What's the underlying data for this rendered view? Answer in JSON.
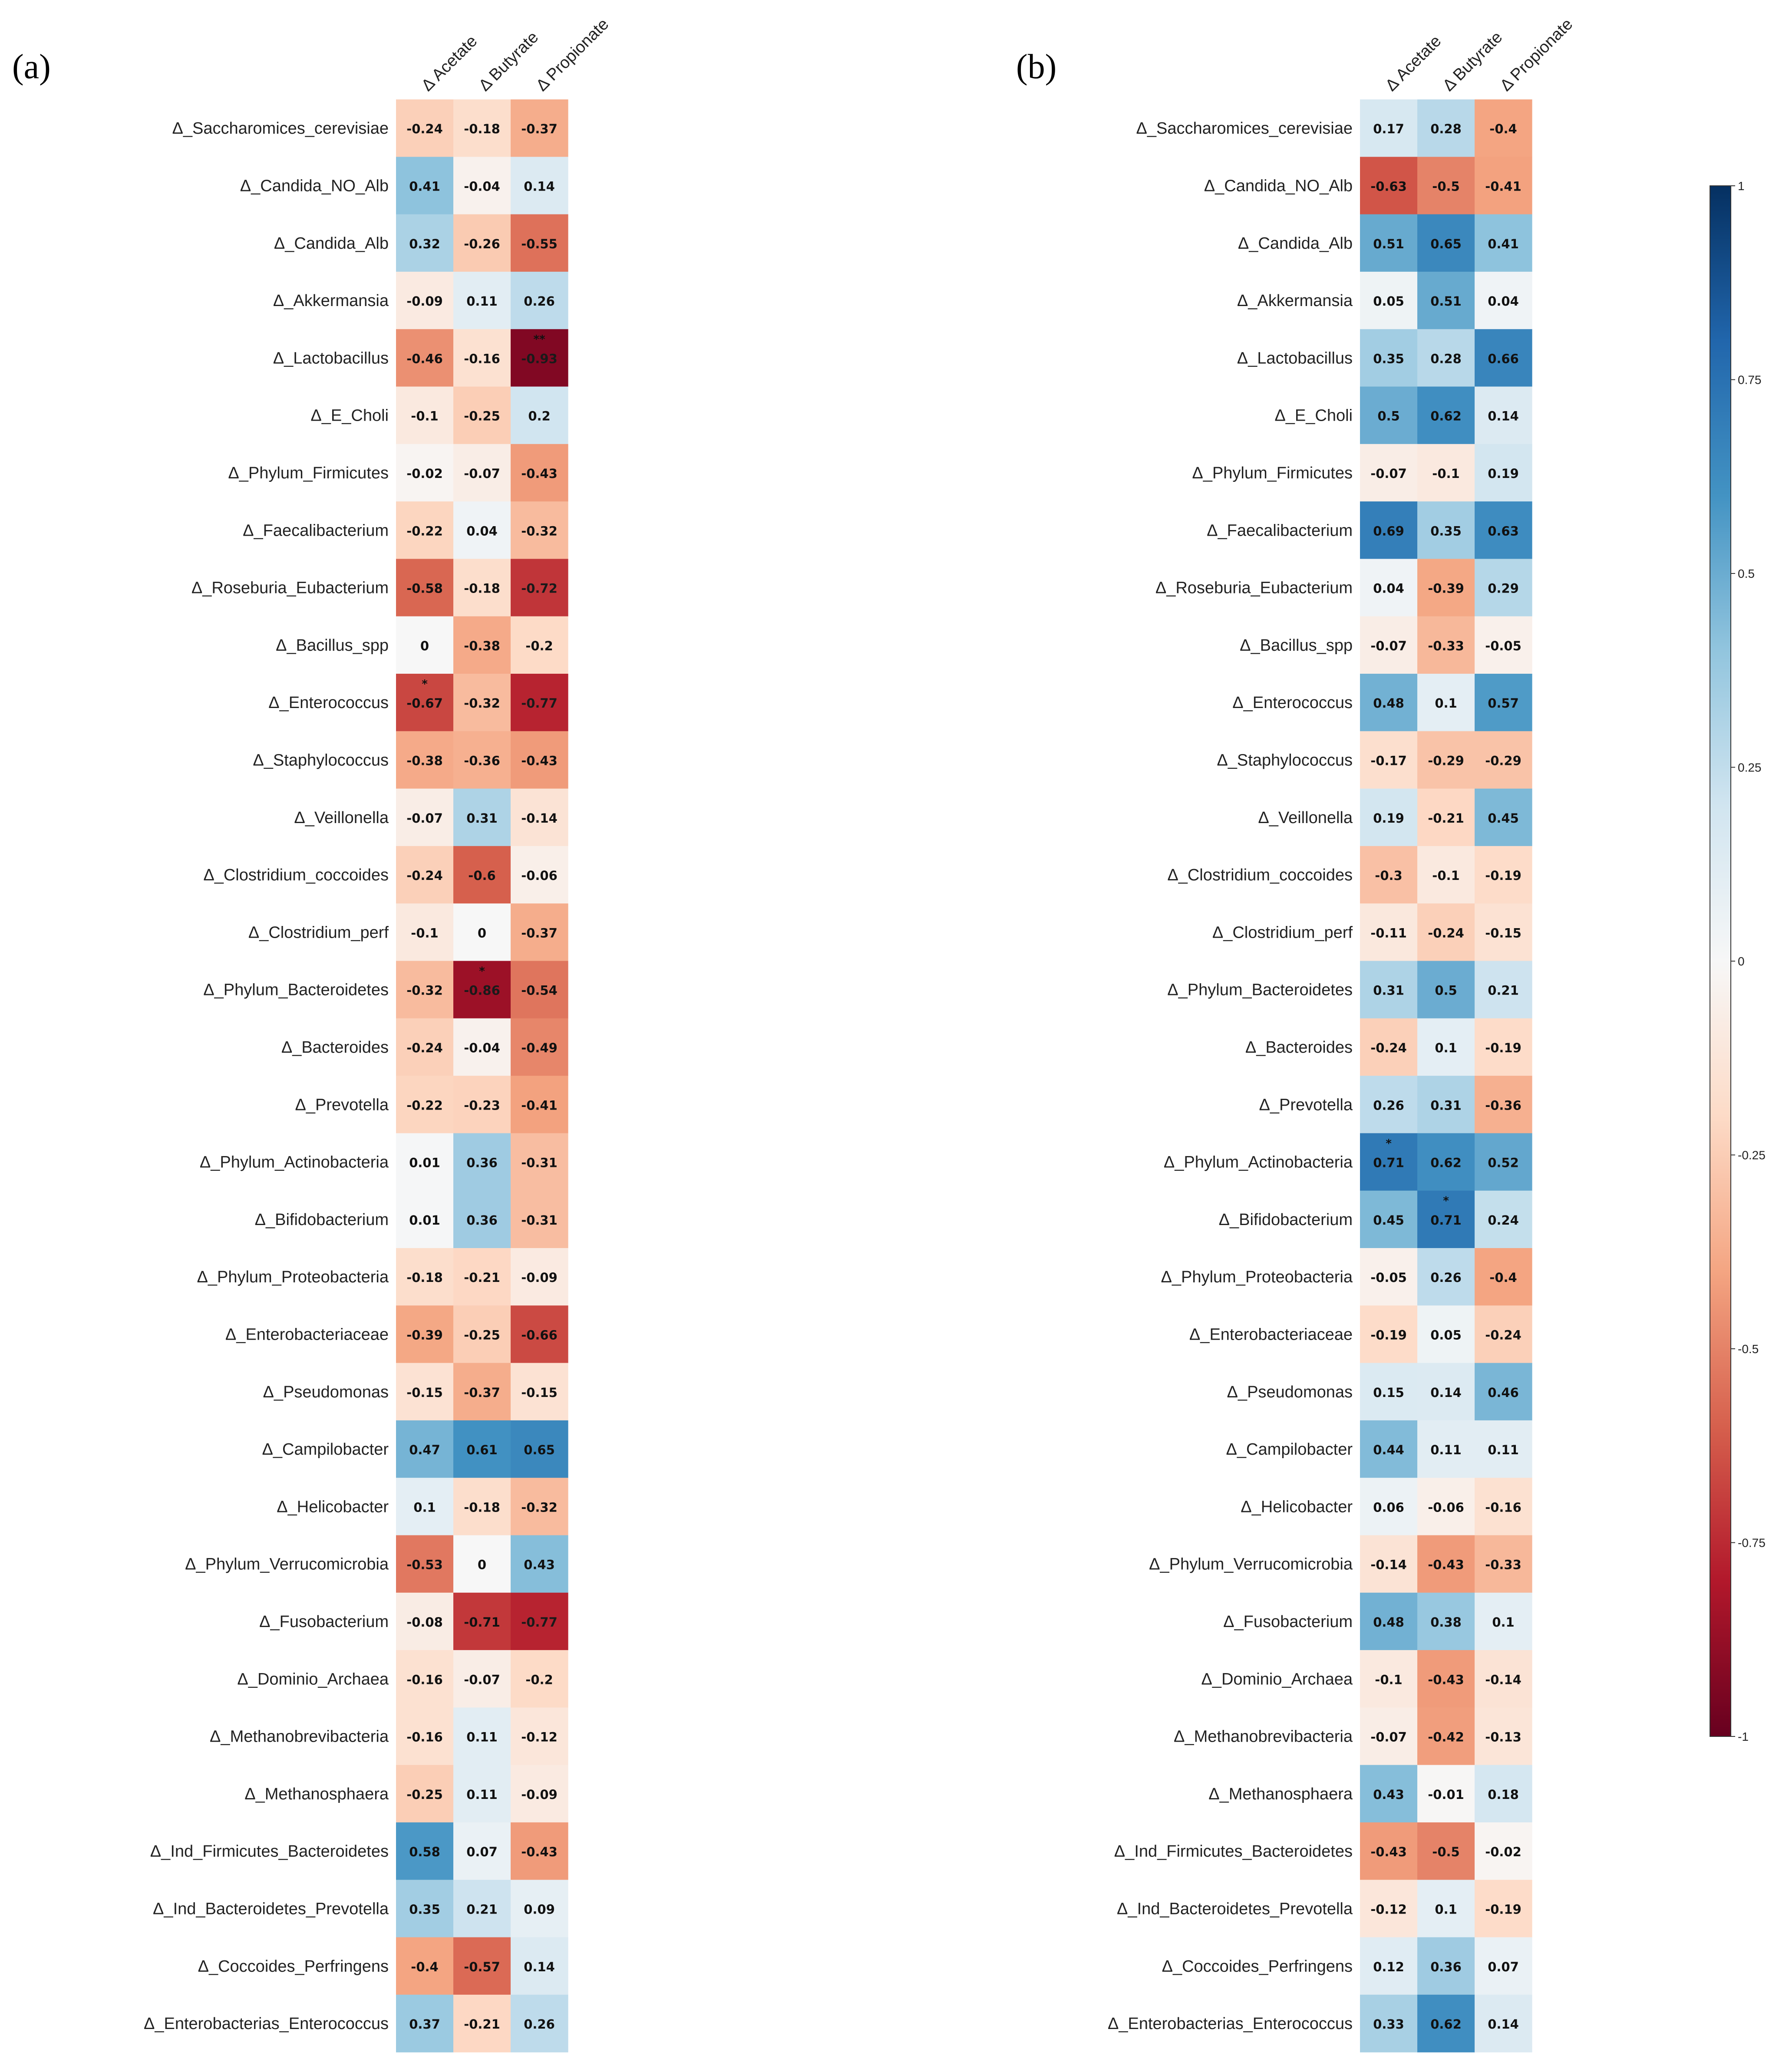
{
  "chart_data": {
    "type": "heatmap",
    "colorscale": {
      "min": -1,
      "max": 1,
      "ticks": [
        "1",
        "0.75",
        "0.5",
        "0.25",
        "0",
        "-0.25",
        "-0.5",
        "-0.75",
        "-1"
      ],
      "tick_values": [
        1,
        0.75,
        0.5,
        0.25,
        0,
        -0.25,
        -0.5,
        -0.75,
        -1
      ],
      "stops": [
        "#67001f",
        "#b2182b",
        "#d6604d",
        "#f4a582",
        "#fddbc7",
        "#f7f7f7",
        "#d1e5f0",
        "#92c5de",
        "#4393c3",
        "#2166ac",
        "#053061"
      ]
    },
    "columns": [
      "Δ Acetate",
      "Δ Butyrate",
      "Δ Propionate"
    ],
    "rows": [
      "Δ_Saccharomices_cerevisiae",
      "Δ_Candida_NO_Alb",
      "Δ_Candida_Alb",
      "Δ_Akkermansia",
      "Δ_Lactobacillus",
      "Δ_E_Choli",
      "Δ_Phylum_Firmicutes",
      "Δ_Faecalibacterium",
      "Δ_Roseburia_Eubacterium",
      "Δ_Bacillus_spp",
      "Δ_Enterococcus",
      "Δ_Staphylococcus",
      "Δ_Veillonella",
      "Δ_Clostridium_coccoides",
      "Δ_Clostridium_perf",
      "Δ_Phylum_Bacteroidetes",
      "Δ_Bacteroides",
      "Δ_Prevotella",
      "Δ_Phylum_Actinobacteria",
      "Δ_Bifidobacterium",
      "Δ_Phylum_Proteobacteria",
      "Δ_Enterobacteriaceae",
      "Δ_Pseudomonas",
      "Δ_Campilobacter",
      "Δ_Helicobacter",
      "Δ_Phylum_Verrucomicrobia",
      "Δ_Fusobacterium",
      "Δ_Dominio_Archaea",
      "Δ_Methanobrevibacteria",
      "Δ_Methanosphaera",
      "Δ_Ind_Firmicutes_Bacteroidetes",
      "Δ_Ind_Bacteroidetes_Prevotella",
      "Δ_Coccoides_Perfringens",
      "Δ_Enterobacterias_Enterococcus"
    ],
    "panels": [
      {
        "label": "(a)",
        "values": [
          [
            -0.24,
            -0.18,
            -0.37
          ],
          [
            0.41,
            -0.04,
            0.14
          ],
          [
            0.32,
            -0.26,
            -0.55
          ],
          [
            -0.09,
            0.11,
            0.26
          ],
          [
            -0.46,
            -0.16,
            -0.93
          ],
          [
            -0.1,
            -0.25,
            0.2
          ],
          [
            -0.02,
            -0.07,
            -0.43
          ],
          [
            -0.22,
            0.04,
            -0.32
          ],
          [
            -0.58,
            -0.18,
            -0.72
          ],
          [
            0,
            -0.38,
            -0.2
          ],
          [
            -0.67,
            -0.32,
            -0.77
          ],
          [
            -0.38,
            -0.36,
            -0.43
          ],
          [
            -0.07,
            0.31,
            -0.14
          ],
          [
            -0.24,
            -0.6,
            -0.06
          ],
          [
            -0.1,
            0,
            -0.37
          ],
          [
            -0.32,
            -0.86,
            -0.54
          ],
          [
            -0.24,
            -0.04,
            -0.49
          ],
          [
            -0.22,
            -0.23,
            -0.41
          ],
          [
            0.01,
            0.36,
            -0.31
          ],
          [
            0.01,
            0.36,
            -0.31
          ],
          [
            -0.18,
            -0.21,
            -0.09
          ],
          [
            -0.39,
            -0.25,
            -0.66
          ],
          [
            -0.15,
            -0.37,
            -0.15
          ],
          [
            0.47,
            0.61,
            0.65
          ],
          [
            0.1,
            -0.18,
            -0.32
          ],
          [
            -0.53,
            0,
            0.43
          ],
          [
            -0.08,
            -0.71,
            -0.77
          ],
          [
            -0.16,
            -0.07,
            -0.2
          ],
          [
            -0.16,
            0.11,
            -0.12
          ],
          [
            -0.25,
            0.11,
            -0.09
          ],
          [
            0.58,
            0.07,
            -0.43
          ],
          [
            0.35,
            0.21,
            0.09
          ],
          [
            -0.4,
            -0.57,
            0.14
          ],
          [
            0.37,
            -0.21,
            0.26
          ]
        ],
        "labels": [
          [
            "-0.24",
            "-0.18",
            "-0.37"
          ],
          [
            "0.41",
            "-0.04",
            "0.14"
          ],
          [
            "0.32",
            "-0.26",
            "-0.55"
          ],
          [
            "-0.09",
            "0.11",
            "0.26"
          ],
          [
            "-0.46",
            "-0.16",
            "-0.93"
          ],
          [
            "-0.1",
            "-0.25",
            "0.2"
          ],
          [
            "-0.02",
            "-0.07",
            "-0.43"
          ],
          [
            "-0.22",
            "0.04",
            "-0.32"
          ],
          [
            "-0.58",
            "-0.18",
            "-0.72"
          ],
          [
            "0",
            "-0.38",
            "-0.2"
          ],
          [
            "-0.67",
            "-0.32",
            "-0.77"
          ],
          [
            "-0.38",
            "-0.36",
            "-0.43"
          ],
          [
            "-0.07",
            "0.31",
            "-0.14"
          ],
          [
            "-0.24",
            "-0.6",
            "-0.06"
          ],
          [
            "-0.1",
            "0",
            "-0.37"
          ],
          [
            "-0.32",
            "-0.86",
            "-0.54"
          ],
          [
            "-0.24",
            "-0.04",
            "-0.49"
          ],
          [
            "-0.22",
            "-0.23",
            "-0.41"
          ],
          [
            "0.01",
            "0.36",
            "-0.31"
          ],
          [
            "0.01",
            "0.36",
            "-0.31"
          ],
          [
            "-0.18",
            "-0.21",
            "-0.09"
          ],
          [
            "-0.39",
            "-0.25",
            "-0.66"
          ],
          [
            "-0.15",
            "-0.37",
            "-0.15"
          ],
          [
            "0.47",
            "0.61",
            "0.65"
          ],
          [
            "0.1",
            "-0.18",
            "-0.32"
          ],
          [
            "-0.53",
            "0",
            "0.43"
          ],
          [
            "-0.08",
            "-0.71",
            "-0.77"
          ],
          [
            "-0.16",
            "-0.07",
            "-0.2"
          ],
          [
            "-0.16",
            "0.11",
            "-0.12"
          ],
          [
            "-0.25",
            "0.11",
            "-0.09"
          ],
          [
            "0.58",
            "0.07",
            "-0.43"
          ],
          [
            "0.35",
            "0.21",
            "0.09"
          ],
          [
            "-0.4",
            "-0.57",
            "0.14"
          ],
          [
            "0.37",
            "-0.21",
            "0.26"
          ]
        ],
        "significance": [
          {
            "row": 4,
            "col": 2,
            "mark": "**"
          },
          {
            "row": 10,
            "col": 0,
            "mark": "*"
          },
          {
            "row": 15,
            "col": 1,
            "mark": "*"
          }
        ]
      },
      {
        "label": "(b)",
        "values": [
          [
            0.17,
            0.28,
            -0.4
          ],
          [
            -0.63,
            -0.5,
            -0.41
          ],
          [
            0.51,
            0.65,
            0.41
          ],
          [
            0.05,
            0.51,
            0.04
          ],
          [
            0.35,
            0.28,
            0.66
          ],
          [
            0.5,
            0.62,
            0.14
          ],
          [
            -0.07,
            -0.1,
            0.19
          ],
          [
            0.69,
            0.35,
            0.63
          ],
          [
            0.04,
            -0.39,
            0.29
          ],
          [
            -0.07,
            -0.33,
            -0.05
          ],
          [
            0.48,
            0.1,
            0.57
          ],
          [
            -0.17,
            -0.29,
            -0.29
          ],
          [
            0.19,
            -0.21,
            0.45
          ],
          [
            -0.3,
            -0.1,
            -0.19
          ],
          [
            -0.11,
            -0.24,
            -0.15
          ],
          [
            0.31,
            0.5,
            0.21
          ],
          [
            -0.24,
            0.1,
            -0.19
          ],
          [
            0.26,
            0.31,
            -0.36
          ],
          [
            0.71,
            0.62,
            0.52
          ],
          [
            0.45,
            0.71,
            0.24
          ],
          [
            -0.05,
            0.26,
            -0.4
          ],
          [
            -0.19,
            0.05,
            -0.24
          ],
          [
            0.15,
            0.14,
            0.46
          ],
          [
            0.44,
            0.11,
            0.11
          ],
          [
            0.06,
            -0.06,
            -0.16
          ],
          [
            -0.14,
            -0.43,
            -0.33
          ],
          [
            0.48,
            0.38,
            0.1
          ],
          [
            -0.1,
            -0.43,
            -0.14
          ],
          [
            -0.07,
            -0.42,
            -0.13
          ],
          [
            0.43,
            -0.01,
            0.18
          ],
          [
            -0.43,
            -0.5,
            -0.02
          ],
          [
            -0.12,
            0.1,
            -0.19
          ],
          [
            0.12,
            0.36,
            0.07
          ],
          [
            0.33,
            0.62,
            0.14
          ]
        ],
        "labels": [
          [
            "0.17",
            "0.28",
            "-0.4"
          ],
          [
            "-0.63",
            "-0.5",
            "-0.41"
          ],
          [
            "0.51",
            "0.65",
            "0.41"
          ],
          [
            "0.05",
            "0.51",
            "0.04"
          ],
          [
            "0.35",
            "0.28",
            "0.66"
          ],
          [
            "0.5",
            "0.62",
            "0.14"
          ],
          [
            "-0.07",
            "-0.1",
            "0.19"
          ],
          [
            "0.69",
            "0.35",
            "0.63"
          ],
          [
            "0.04",
            "-0.39",
            "0.29"
          ],
          [
            "-0.07",
            "-0.33",
            "-0.05"
          ],
          [
            "0.48",
            "0.1",
            "0.57"
          ],
          [
            "-0.17",
            "-0.29",
            "-0.29"
          ],
          [
            "0.19",
            "-0.21",
            "0.45"
          ],
          [
            "-0.3",
            "-0.1",
            "-0.19"
          ],
          [
            "-0.11",
            "-0.24",
            "-0.15"
          ],
          [
            "0.31",
            "0.5",
            "0.21"
          ],
          [
            "-0.24",
            "0.1",
            "-0.19"
          ],
          [
            "0.26",
            "0.31",
            "-0.36"
          ],
          [
            "0.71",
            "0.62",
            "0.52"
          ],
          [
            "0.45",
            "0.71",
            "0.24"
          ],
          [
            "-0.05",
            "0.26",
            "-0.4"
          ],
          [
            "-0.19",
            "0.05",
            "-0.24"
          ],
          [
            "0.15",
            "0.14",
            "0.46"
          ],
          [
            "0.44",
            "0.11",
            "0.11"
          ],
          [
            "0.06",
            "-0.06",
            "-0.16"
          ],
          [
            "-0.14",
            "-0.43",
            "-0.33"
          ],
          [
            "0.48",
            "0.38",
            "0.1"
          ],
          [
            "-0.1",
            "-0.43",
            "-0.14"
          ],
          [
            "-0.07",
            "-0.42",
            "-0.13"
          ],
          [
            "0.43",
            "-0.01",
            "0.18"
          ],
          [
            "-0.43",
            "-0.5",
            "-0.02"
          ],
          [
            "-0.12",
            "0.1",
            "-0.19"
          ],
          [
            "0.12",
            "0.36",
            "0.07"
          ],
          [
            "0.33",
            "0.62",
            "0.14"
          ]
        ],
        "significance": [
          {
            "row": 18,
            "col": 0,
            "mark": "*"
          },
          {
            "row": 19,
            "col": 1,
            "mark": "*"
          }
        ]
      }
    ]
  }
}
